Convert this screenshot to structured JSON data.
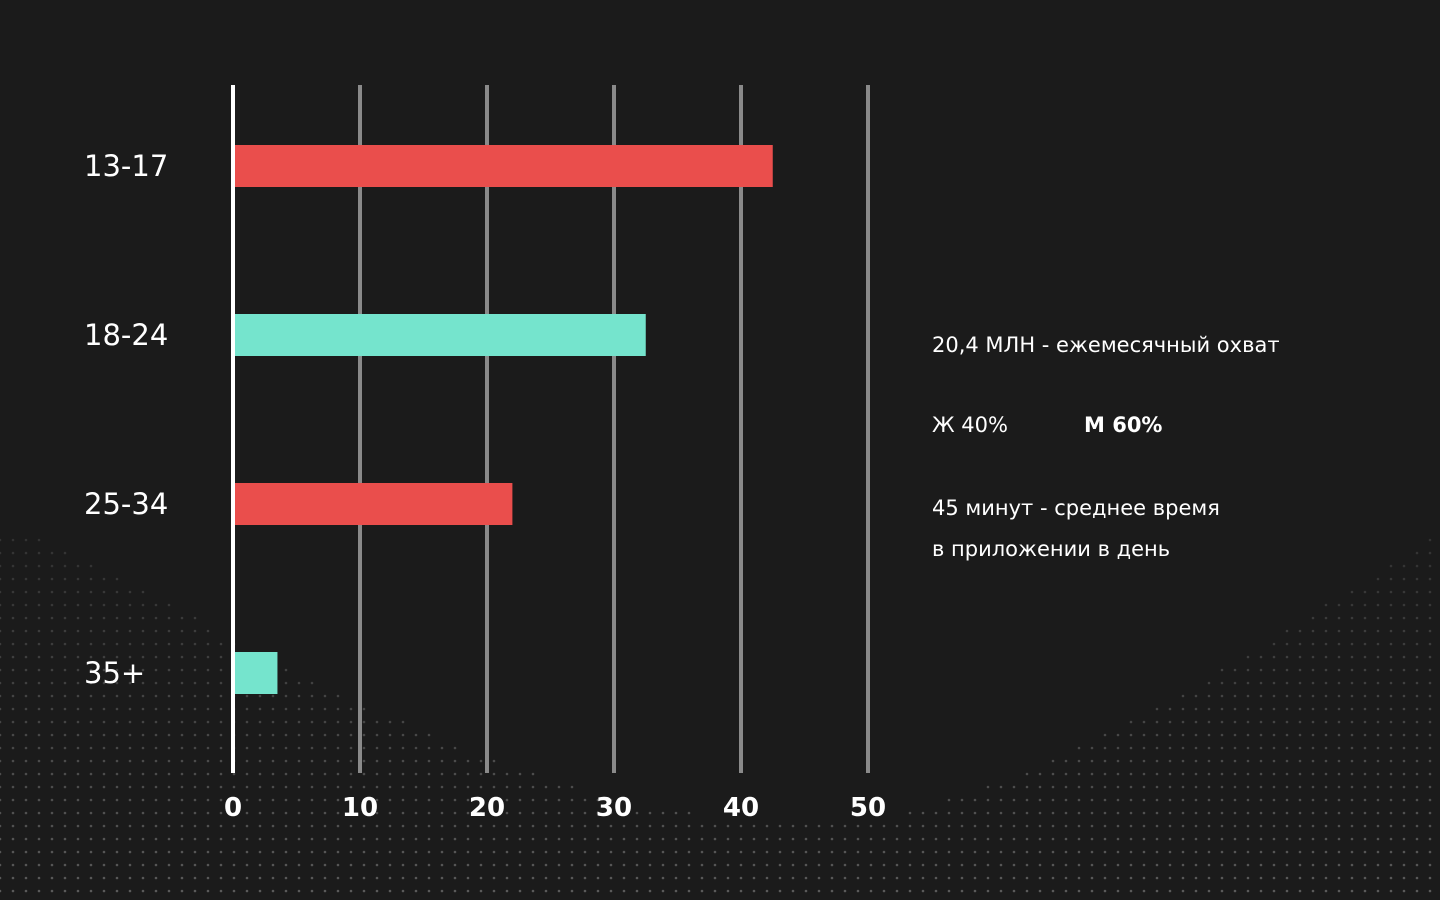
{
  "chart_data": {
    "type": "bar",
    "orientation": "horizontal",
    "categories": [
      "13-17",
      "18-24",
      "25-34",
      "35+"
    ],
    "values": [
      42.5,
      32.5,
      22,
      3.5
    ],
    "bar_colors": [
      "#ea4e4c",
      "#75e4cd",
      "#ea4e4c",
      "#75e4cd"
    ],
    "xticks": [
      "0",
      "10",
      "20",
      "30",
      "40",
      "50"
    ],
    "xlim": [
      0,
      50
    ],
    "grid": true
  },
  "stats": {
    "reach": "20,4 МЛН - ежемесячный охват",
    "female": "Ж 40%",
    "male": "М 60%",
    "time_line1": "45 минут - среднее время",
    "time_line2": "в приложении в день"
  },
  "colors": {
    "background": "#1b1b1b",
    "grid": "#8a8a8a",
    "axis": "#ffffff",
    "red": "#ea4e4c",
    "teal": "#75e4cd"
  }
}
